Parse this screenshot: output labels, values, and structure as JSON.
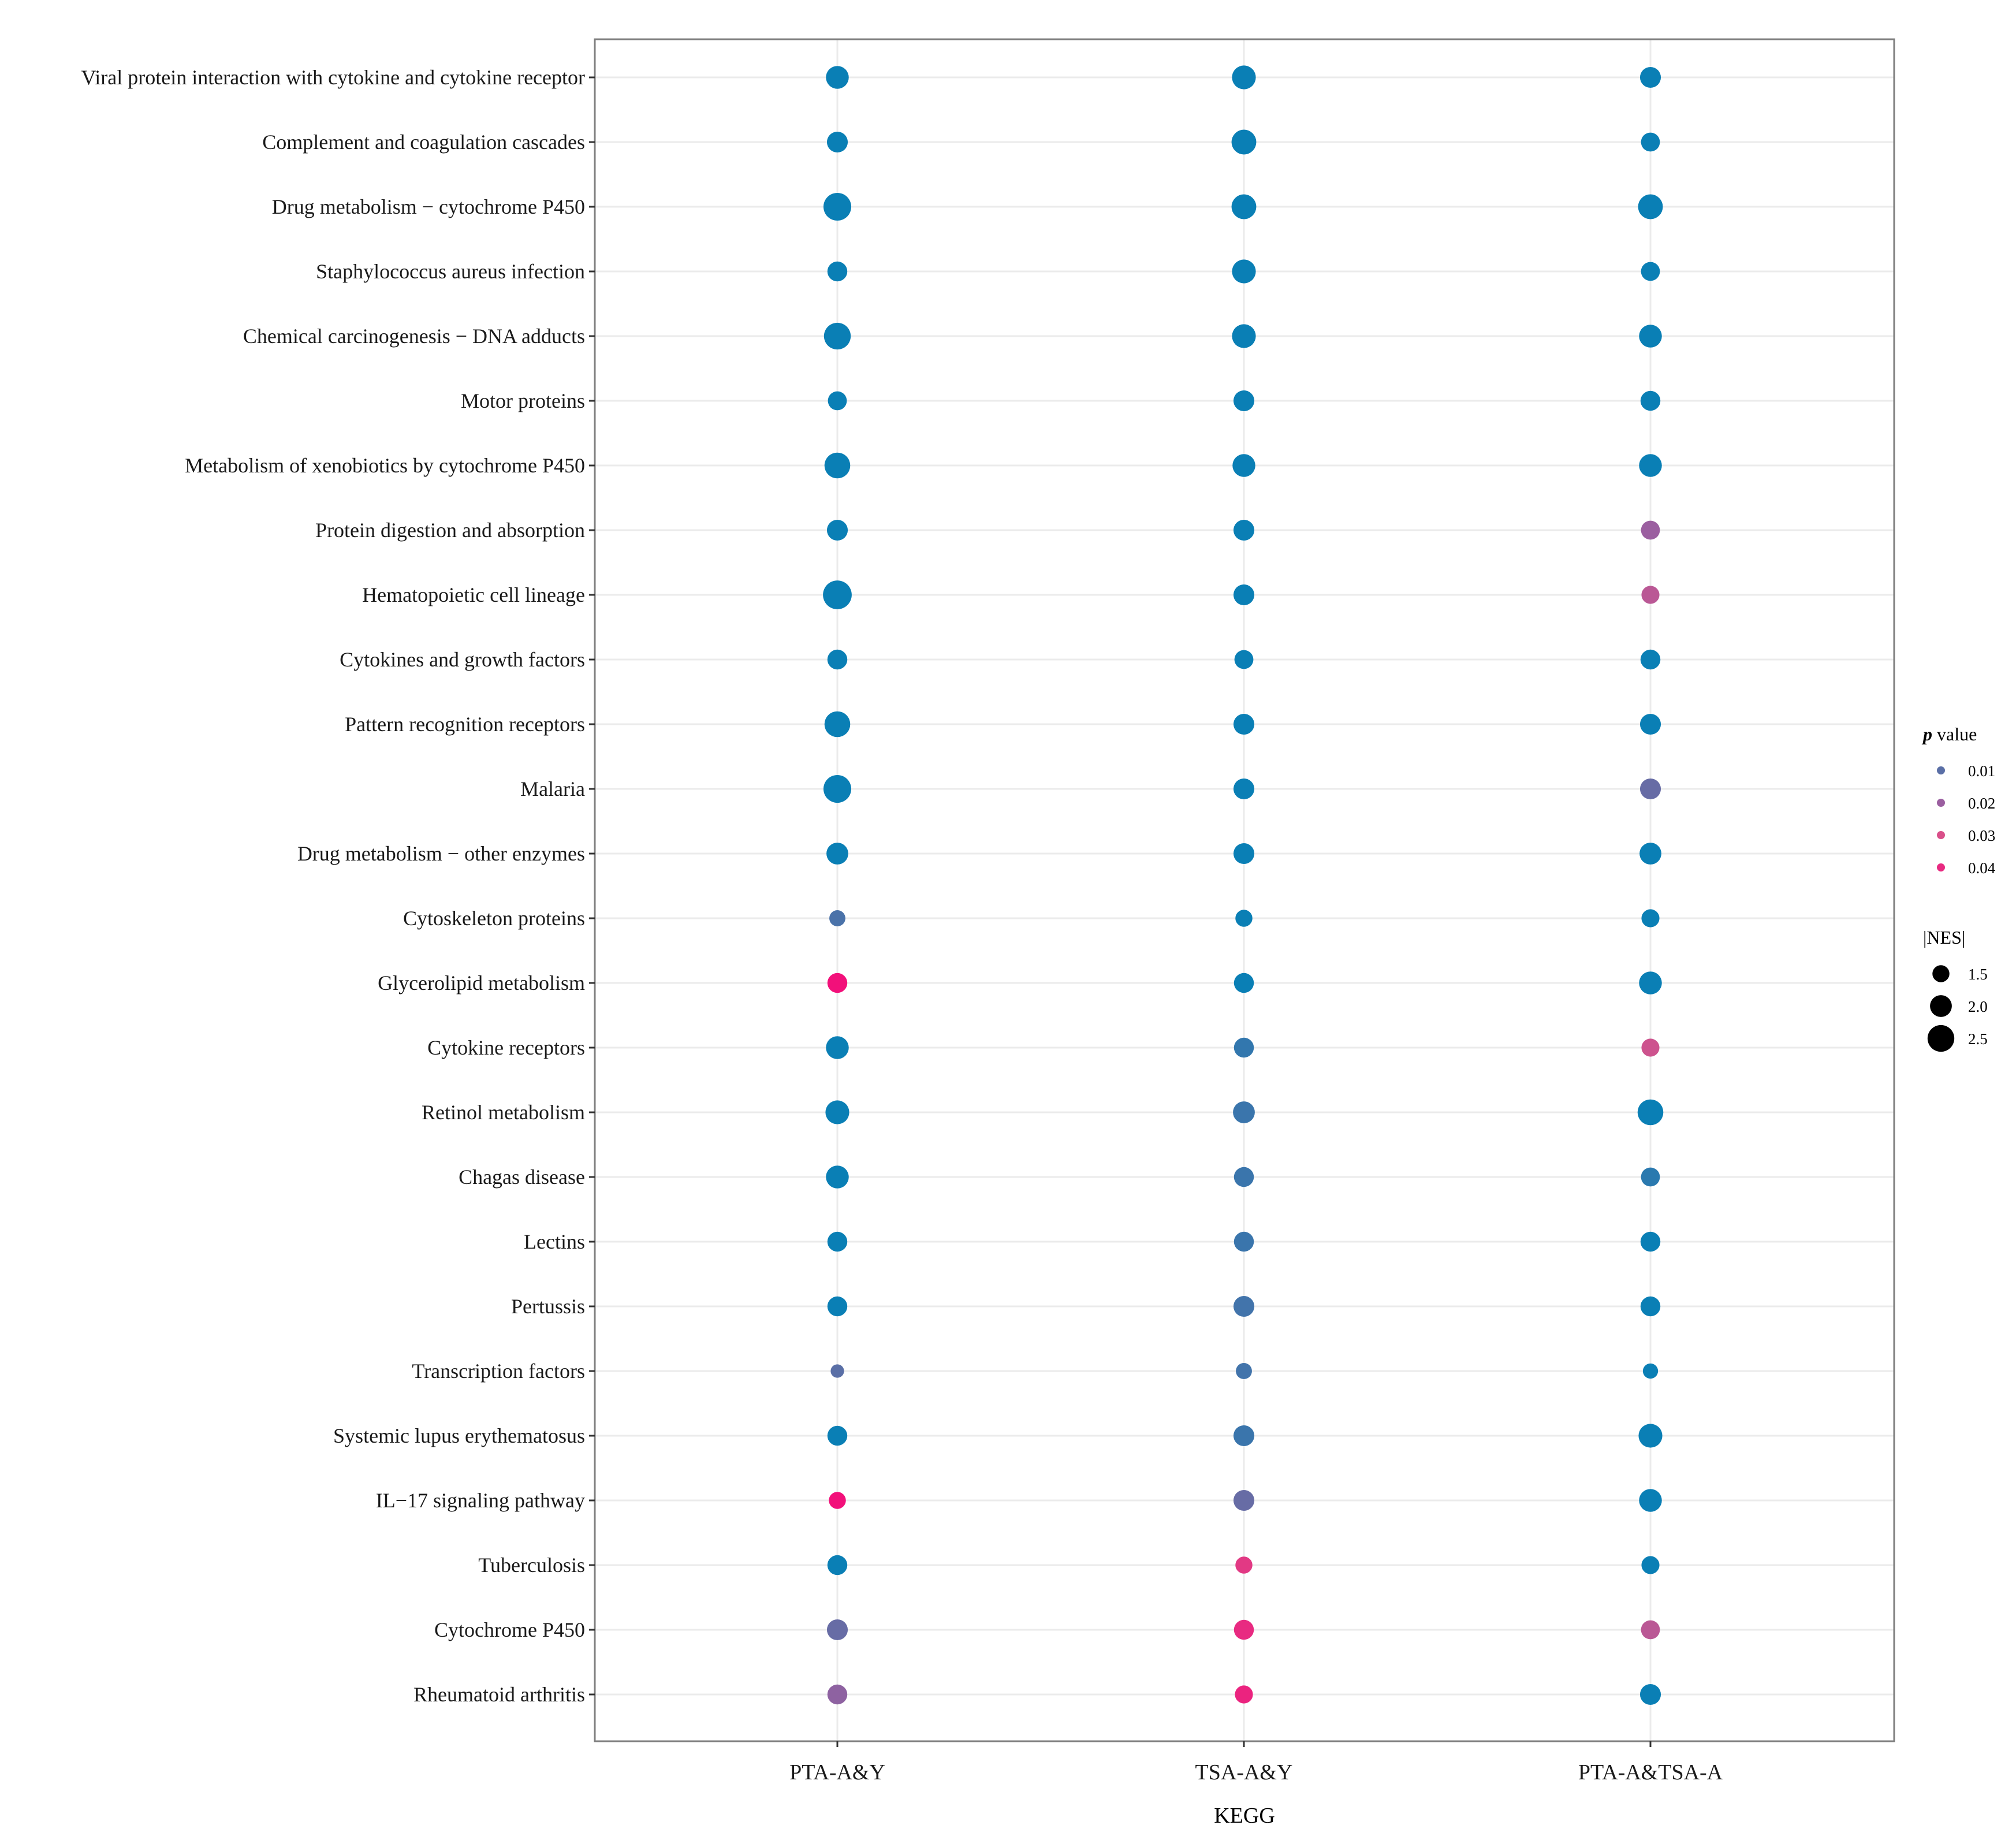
{
  "chart_data": {
    "type": "scatter",
    "subtype": "dot-plot",
    "xlabel": "KEGG",
    "ylabel": "",
    "grid": true,
    "categories_x": [
      "PTA-A&Y",
      "TSA-A&Y",
      "PTA-A&TSA-A"
    ],
    "categories_y": [
      "Viral protein interaction with cytokine and cytokine receptor",
      "Complement and coagulation cascades",
      "Drug metabolism − cytochrome P450",
      "Staphylococcus aureus infection",
      "Chemical carcinogenesis − DNA adducts",
      "Motor proteins",
      "Metabolism of xenobiotics by cytochrome P450",
      "Protein digestion and absorption",
      "Hematopoietic cell lineage",
      "Cytokines and growth factors",
      "Pattern recognition receptors",
      "Malaria",
      "Drug metabolism − other enzymes",
      "Cytoskeleton proteins",
      "Glycerolipid metabolism",
      "Cytokine receptors",
      "Retinol metabolism",
      "Chagas disease",
      "Lectins",
      "Pertussis",
      "Transcription factors",
      "Systemic lupus erythematosus",
      "IL−17 signaling pathway",
      "Tuberculosis",
      "Cytochrome P450",
      "Rheumatoid arthritis"
    ],
    "nes_abs": [
      [
        2.1,
        2.2,
        1.9
      ],
      [
        1.9,
        2.3,
        1.7
      ],
      [
        2.6,
        2.3,
        2.3
      ],
      [
        1.8,
        2.2,
        1.7
      ],
      [
        2.5,
        2.2,
        2.1
      ],
      [
        1.7,
        1.9,
        1.8
      ],
      [
        2.4,
        2.1,
        2.1
      ],
      [
        1.9,
        1.9,
        1.7
      ],
      [
        2.7,
        1.9,
        1.6
      ],
      [
        1.8,
        1.7,
        1.8
      ],
      [
        2.4,
        1.9,
        1.9
      ],
      [
        2.6,
        1.9,
        1.9
      ],
      [
        2.0,
        1.9,
        2.0
      ],
      [
        1.4,
        1.5,
        1.6
      ],
      [
        1.8,
        1.8,
        2.1
      ],
      [
        2.1,
        1.8,
        1.6
      ],
      [
        2.2,
        2.0,
        2.4
      ],
      [
        2.1,
        1.8,
        1.7
      ],
      [
        1.8,
        1.8,
        1.8
      ],
      [
        1.8,
        1.9,
        1.8
      ],
      [
        1.1,
        1.4,
        1.3
      ],
      [
        1.8,
        1.9,
        2.2
      ],
      [
        1.5,
        1.9,
        2.1
      ],
      [
        1.8,
        1.5,
        1.6
      ],
      [
        1.9,
        1.8,
        1.7
      ],
      [
        1.8,
        1.6,
        1.9
      ]
    ],
    "p_value": [
      [
        0.0,
        0.0,
        0.0
      ],
      [
        0.0,
        0.0,
        0.0
      ],
      [
        0.0,
        0.0,
        0.0
      ],
      [
        0.0,
        0.0,
        0.0
      ],
      [
        0.0,
        0.0,
        0.0
      ],
      [
        0.0,
        0.0,
        0.0
      ],
      [
        0.0,
        0.0,
        0.0
      ],
      [
        0.0,
        0.0,
        0.02
      ],
      [
        0.0,
        0.0,
        0.025
      ],
      [
        0.0,
        0.0,
        0.0
      ],
      [
        0.0,
        0.0,
        0.0
      ],
      [
        0.0,
        0.0,
        0.012
      ],
      [
        0.0,
        0.0,
        0.0
      ],
      [
        0.008,
        0.0,
        0.0
      ],
      [
        0.047,
        0.0,
        0.0
      ],
      [
        0.0,
        0.005,
        0.028
      ],
      [
        0.0,
        0.006,
        0.0
      ],
      [
        0.0,
        0.006,
        0.004
      ],
      [
        0.0,
        0.006,
        0.0
      ],
      [
        0.0,
        0.007,
        0.0
      ],
      [
        0.01,
        0.007,
        0.0
      ],
      [
        0.0,
        0.006,
        0.0
      ],
      [
        0.047,
        0.012,
        0.0
      ],
      [
        0.0,
        0.036,
        0.0
      ],
      [
        0.012,
        0.04,
        0.025
      ],
      [
        0.018,
        0.042,
        0.0
      ]
    ],
    "legend": {
      "color_title_italic": "p",
      "color_title_rest": " value",
      "color_values": [
        0.01,
        0.02,
        0.03,
        0.04
      ],
      "color_labels": [
        "0.01",
        "0.02",
        "0.03",
        "0.04"
      ],
      "size_title": "|NES|",
      "size_values": [
        1.5,
        2.0,
        2.5
      ],
      "size_labels": [
        "1.5",
        "2.0",
        "2.5"
      ],
      "placement": "right"
    },
    "colors": {
      "low": "#0a7fb5",
      "mid1": "#5a6fa6",
      "mid2": "#9b5fa0",
      "mid3": "#d9508a",
      "high": "#f2107a",
      "grid": "#ebebeb",
      "panel_border": "#7f7f7f",
      "text": "#1a1a1a"
    }
  }
}
